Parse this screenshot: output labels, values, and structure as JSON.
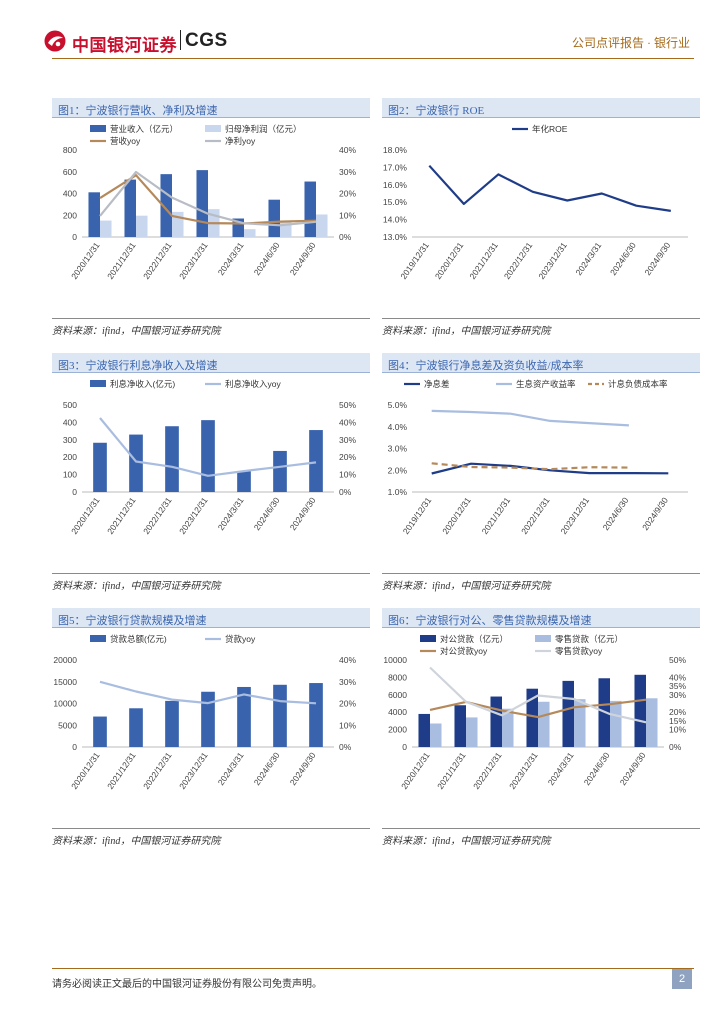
{
  "header": {
    "brand_cn": "中国银河证券",
    "brand_en": "CGS",
    "report_type": "公司点评报告 · 银行业",
    "logo_icon": "galaxy-logo-icon",
    "brand_color": "#c8102e",
    "accent_color": "#a56a1a"
  },
  "source_text": "资料来源：ifind，中国银河证券研究院",
  "footer": {
    "disclaimer": "请务必阅读正文最后的中国银河证券股份有限公司免责声明。",
    "page": "2"
  },
  "chart_data": [
    {
      "id": "fig1",
      "type": "bar+line",
      "title": "图1：宁波银行营收、净利及增速",
      "categories": [
        "2020/12/31",
        "2021/12/31",
        "2022/12/31",
        "2023/12/31",
        "2024/3/31",
        "2024/6/30",
        "2024/9/30"
      ],
      "ylim_left": [
        0,
        800
      ],
      "yticks_left": [
        "0",
        "200",
        "400",
        "600",
        "800"
      ],
      "ylim_right": [
        0,
        40
      ],
      "yticks_right": [
        "0%",
        "10%",
        "20%",
        "30%",
        "40%"
      ],
      "bars": [
        {
          "name": "营业收入（亿元）",
          "color": "#3a63ad",
          "values": [
            411,
            528,
            578,
            615,
            170,
            343,
            510
          ]
        },
        {
          "name": "归母净利润（亿元）",
          "color": "#c8d6ee",
          "values": [
            151,
            196,
            231,
            256,
            72,
            137,
            207
          ]
        }
      ],
      "lines": [
        {
          "name": "营收yoy",
          "color": "#b5895a",
          "values": [
            17.9,
            28.4,
            9.7,
            6.4,
            6.2,
            7.1,
            7.5
          ]
        },
        {
          "name": "净利yoy",
          "color": "#b8bcc4",
          "values": [
            9.7,
            29.9,
            18.1,
            10.7,
            6.3,
            5.4,
            7.0
          ]
        }
      ]
    },
    {
      "id": "fig2",
      "type": "line",
      "title": "图2：宁波银行 ROE",
      "categories": [
        "2019/12/31",
        "2020/12/31",
        "2021/12/31",
        "2022/12/31",
        "2023/12/31",
        "2024/3/31",
        "2024/6/30",
        "2024/9/30"
      ],
      "ylim_left": [
        13,
        18
      ],
      "yticks_left": [
        "13.0%",
        "14.0%",
        "15.0%",
        "16.0%",
        "17.0%",
        "18.0%"
      ],
      "lines": [
        {
          "name": "年化ROE",
          "color": "#1f3c88",
          "values": [
            17.1,
            14.9,
            16.6,
            15.6,
            15.1,
            15.5,
            14.8,
            14.5
          ]
        }
      ]
    },
    {
      "id": "fig3",
      "type": "bar+line",
      "title": "图3：宁波银行利息净收入及增速",
      "categories": [
        "2020/12/31",
        "2021/12/31",
        "2022/12/31",
        "2023/12/31",
        "2024/3/31",
        "2024/6/30",
        "2024/9/30"
      ],
      "ylim_left": [
        0,
        500
      ],
      "yticks_left": [
        "0",
        "100",
        "200",
        "300",
        "400",
        "500"
      ],
      "ylim_right": [
        0,
        50
      ],
      "yticks_right": [
        "0%",
        "10%",
        "20%",
        "30%",
        "40%",
        "50%"
      ],
      "bars": [
        {
          "name": "利息净收入(亿元)",
          "color": "#3a63ad",
          "values": [
            283,
            330,
            378,
            413,
            118,
            236,
            356
          ]
        }
      ],
      "lines": [
        {
          "name": "利息净收入yoy",
          "color": "#a9bde0",
          "values": [
            42.5,
            17.5,
            14.5,
            9.3,
            12.0,
            14.5,
            17.0
          ]
        }
      ]
    },
    {
      "id": "fig4",
      "type": "line",
      "title": "图4：宁波银行净息差及资负收益/成本率",
      "categories": [
        "2019/12/31",
        "2020/12/31",
        "2021/12/31",
        "2022/12/31",
        "2023/12/31",
        "2024/6/30",
        "2024/9/30"
      ],
      "ylim_left": [
        1,
        5
      ],
      "yticks_left": [
        "1.0%",
        "2.0%",
        "3.0%",
        "4.0%",
        "5.0%"
      ],
      "lines": [
        {
          "name": "净息差",
          "color": "#1f3c88",
          "dash": "",
          "values": [
            1.85,
            2.3,
            2.2,
            2.0,
            1.87,
            1.87,
            1.86
          ]
        },
        {
          "name": "生息资产收益率",
          "color": "#a9bde0",
          "dash": "",
          "values": [
            4.73,
            4.68,
            4.6,
            4.27,
            4.17,
            4.06,
            null
          ]
        },
        {
          "name": "计息负债成本率",
          "color": "#b5895a",
          "dash": "6,4",
          "values": [
            2.32,
            2.15,
            2.12,
            2.05,
            2.14,
            2.12,
            null
          ]
        }
      ]
    },
    {
      "id": "fig5",
      "type": "bar+line",
      "title": "图5：宁波银行贷款规模及增速",
      "categories": [
        "2020/12/31",
        "2021/12/31",
        "2022/12/31",
        "2023/12/31",
        "2024/3/31",
        "2024/6/30",
        "2024/9/30"
      ],
      "ylim_left": [
        0,
        20000
      ],
      "yticks_left": [
        "0",
        "5000",
        "10000",
        "15000",
        "20000"
      ],
      "ylim_right": [
        0,
        40
      ],
      "yticks_right": [
        "0%",
        "10%",
        "20%",
        "30%",
        "40%"
      ],
      "bars": [
        {
          "name": "贷款总额(亿元)",
          "color": "#3a63ad",
          "values": [
            7000,
            8900,
            10600,
            12700,
            13800,
            14300,
            14700
          ]
        }
      ],
      "lines": [
        {
          "name": "贷款yoy",
          "color": "#a9bde0",
          "values": [
            30,
            25.5,
            21.8,
            20.2,
            24.2,
            21.1,
            20.1
          ]
        }
      ]
    },
    {
      "id": "fig6",
      "type": "bar+line",
      "title": "图6：宁波银行对公、零售贷款规模及增速",
      "categories": [
        "2020/12/31",
        "2021/12/31",
        "2022/12/31",
        "2023/12/31",
        "2024/3/31",
        "2024/6/30",
        "2024/9/30"
      ],
      "ylim_left": [
        0,
        10000
      ],
      "yticks_left": [
        "0",
        "2000",
        "4000",
        "6000",
        "8000",
        "10000"
      ],
      "ylim_right": [
        0,
        50
      ],
      "yticks_right": [
        "0%",
        "10%",
        "15%",
        "20%",
        "30%",
        "35%",
        "40%",
        "50%"
      ],
      "yticks_right_values": [
        0,
        10,
        15,
        20,
        30,
        35,
        40,
        50
      ],
      "bars": [
        {
          "name": "对公贷款（亿元）",
          "color": "#1f3c88",
          "values": [
            3800,
            4800,
            5800,
            6700,
            7600,
            7900,
            8300
          ]
        },
        {
          "name": "零售贷款（亿元）",
          "color": "#a9bde0",
          "values": [
            2700,
            3400,
            4400,
            5200,
            5500,
            5300,
            5600
          ]
        }
      ],
      "lines": [
        {
          "name": "对公贷款yoy",
          "color": "#b5895a",
          "values": [
            21.3,
            25.9,
            20.9,
            17.2,
            22.8,
            24.6,
            27.2
          ]
        },
        {
          "name": "零售贷款yoy",
          "color": "#cfd4db",
          "values": [
            45.7,
            26.0,
            18.2,
            29.6,
            27.6,
            18.9,
            14.2
          ]
        }
      ]
    }
  ]
}
